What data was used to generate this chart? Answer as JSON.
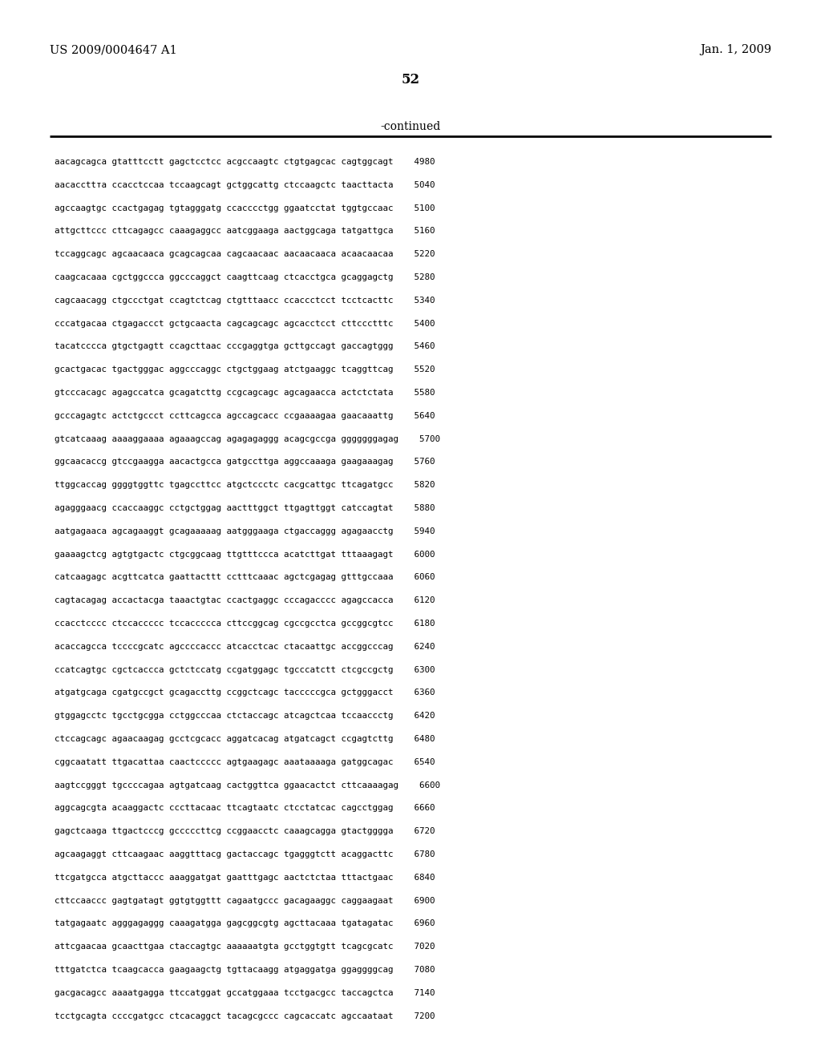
{
  "header_left": "US 2009/0004647 A1",
  "header_right": "Jan. 1, 2009",
  "page_number": "52",
  "continued_label": "-continued",
  "background_color": "#ffffff",
  "text_color": "#000000",
  "font_size_header": 10.5,
  "font_size_page": 12,
  "font_size_continued": 10,
  "font_size_sequence": 7.8,
  "sequence_lines": [
    "aacagcagca gtatttcctt gagctcctcc acgccaagtc ctgtgagcac cagtggcagt    4980",
    "aacaccttта ccacctccaa tccaagcagt gctggcattg ctccaagctc taacttacta    5040",
    "agccaagtgc ccactgagag tgtagggatg ccacccctgg ggaatcctat tggtgccaac    5100",
    "attgcttccc cttcagagcc caaagaggcc aatcggaaga aactggcaga tatgattgca    5160",
    "tccaggcagc agcaacaaca gcagcagcaa cagcaacaac aacaacaaca acaacaacaa    5220",
    "caagcacaaa cgctggccca ggcccaggct caagttcaag ctcacctgca gcaggagctg    5280",
    "cagcaacagg ctgccctgat ccagtctcag ctgtttaacc ccaccctcct tcctcacttc    5340",
    "cccatgacaa ctgagaccct gctgcaacta cagcagcagc agcacctcct cttccctttc    5400",
    "tacatcccca gtgctgagtt ccagcttaac cccgaggtga gcttgccagt gaccagtggg    5460",
    "gcactgacac tgactgggac aggcccaggc ctgctggaag atctgaaggc tcaggttcag    5520",
    "gtcccacagc agagccatca gcagatcttg ccgcagcagc agcagaacca actctctata    5580",
    "gcccagagtc actctgccct ccttcagcca agccagcacc ccgaaaagaa gaacaaattg    5640",
    "gtcatcaaag aaaaggaaaa agaaagccag agagagaggg acagcgccga gggggggagag    5700",
    "ggcaacaccg gtccgaagga aacactgcca gatgccttga aggccaaaga gaagaaagag    5760",
    "ttggcaccag ggggtggttc tgagccttcc atgctccctc cacgcattgc ttcagatgcc    5820",
    "agagggaacg ccaccaaggc cctgctggag aactttggct ttgagttggt catccagtat    5880",
    "aatgagaaca agcagaaggt gcagaaaaag aatgggaaga ctgaccaggg agagaacctg    5940",
    "gaaaagctcg agtgtgactc ctgcggcaag ttgtttccca acatcttgat tttaaagagt    6000",
    "catcaagagc acgttcatca gaattacttt cctttcaaac agctcgagag gtttgccaaa    6060",
    "cagtacagag accactacga taaactgtac ccactgaggc cccagacccc agagccacca    6120",
    "ccacctcccc ctccaccccc tccaccccca cttccggcag cgccgcctca gccggcgtcc    6180",
    "acaccagcca tccccgcatc agccccaccc atcacctcac ctacaattgc accggcccag    6240",
    "ccatcagtgc cgctcaccca gctctccatg ccgatggagc tgcccatctt ctcgccgctg    6300",
    "atgatgcaga cgatgccgct gcagaccttg ccggctcagc tacccccgca gctgggacct    6360",
    "gtggagcctc tgcctgcgga cctggcccaa ctctaccagc atcagctcaa tccaaccctg    6420",
    "ctccagcagc agaacaagag gcctcgcacc aggatcacag atgatcagct ccgagtcttg    6480",
    "cggcaatatt ttgacattaa caactccccc agtgaagagc aaataaaaga gatggcagac    6540",
    "aagtccgggt tgccccagaa agtgatcaag cactggttca ggaacactct cttcaaaagag    6600",
    "aggcagcgta acaaggactc cccttacaac ttcagtaatc ctcctatcac cagcctggag    6660",
    "gagctcaaga ttgactcccg gcccccttcg ccggaacctc caaagcagga gtactgggga    6720",
    "agcaagaggt cttcaagaac aaggtttacg gactaccagc tgagggtctt acaggacttc    6780",
    "ttcgatgcca atgcttaccc aaaggatgat gaatttgagc aactctctaa tttactgaac    6840",
    "cttccaaccc gagtgatagt ggtgtggttt cagaatgccc gacagaaggc caggaagaat    6900",
    "tatgagaatc agggagaggg caaagatgga gagcggcgtg agcttacaaa tgatagatac    6960",
    "attcgaacaa gcaacttgaa ctaccagtgc aaaaaatgta gcctggtgtt tcagcgcatc    7020",
    "tttgatctca tcaagcacca gaagaagctg tgttacaagg atgaggatga ggaggggcag    7080",
    "gacgacagcc aaaatgagga ttccatggat gccatggaaa tcctgacgcc taccagctca    7140",
    "tcctgcagta ccccgatgcc ctcacaggct tacagcgccc cagcaccatc agccaataat    7200"
  ]
}
